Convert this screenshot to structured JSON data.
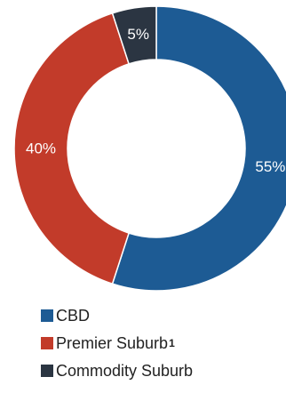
{
  "chart_data": {
    "type": "pie",
    "title": "",
    "donut": true,
    "slices": [
      {
        "label": "CBD",
        "value": 55,
        "value_label": "55%",
        "color": "#1d5b94",
        "footnote": ""
      },
      {
        "label": "Premier Suburb",
        "value": 40,
        "value_label": "40%",
        "color": "#c23b2a",
        "footnote": "1"
      },
      {
        "label": "Commodity Suburb",
        "value": 5,
        "value_label": "5%",
        "color": "#2b3542",
        "footnote": ""
      }
    ],
    "legend_position": "bottom-left"
  }
}
